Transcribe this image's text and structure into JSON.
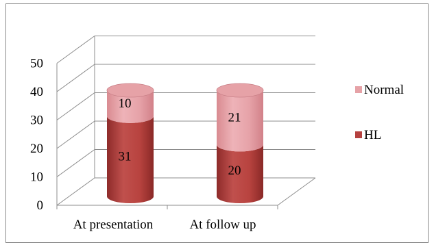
{
  "chart_data": {
    "type": "bar",
    "style": "3d-stacked-cylinder",
    "categories": [
      "At presentation",
      "At follow up"
    ],
    "series": [
      {
        "name": "HL",
        "values": [
          31,
          20
        ],
        "color": "#b5413f"
      },
      {
        "name": "Normal",
        "values": [
          10,
          21
        ],
        "color": "#e6a2a7"
      }
    ],
    "y_ticks": [
      "0",
      "10",
      "20",
      "30",
      "40",
      "50"
    ],
    "ylim": [
      0,
      50
    ],
    "grid": true,
    "legend_position": "right",
    "legend_order": [
      "Normal",
      "HL"
    ]
  }
}
